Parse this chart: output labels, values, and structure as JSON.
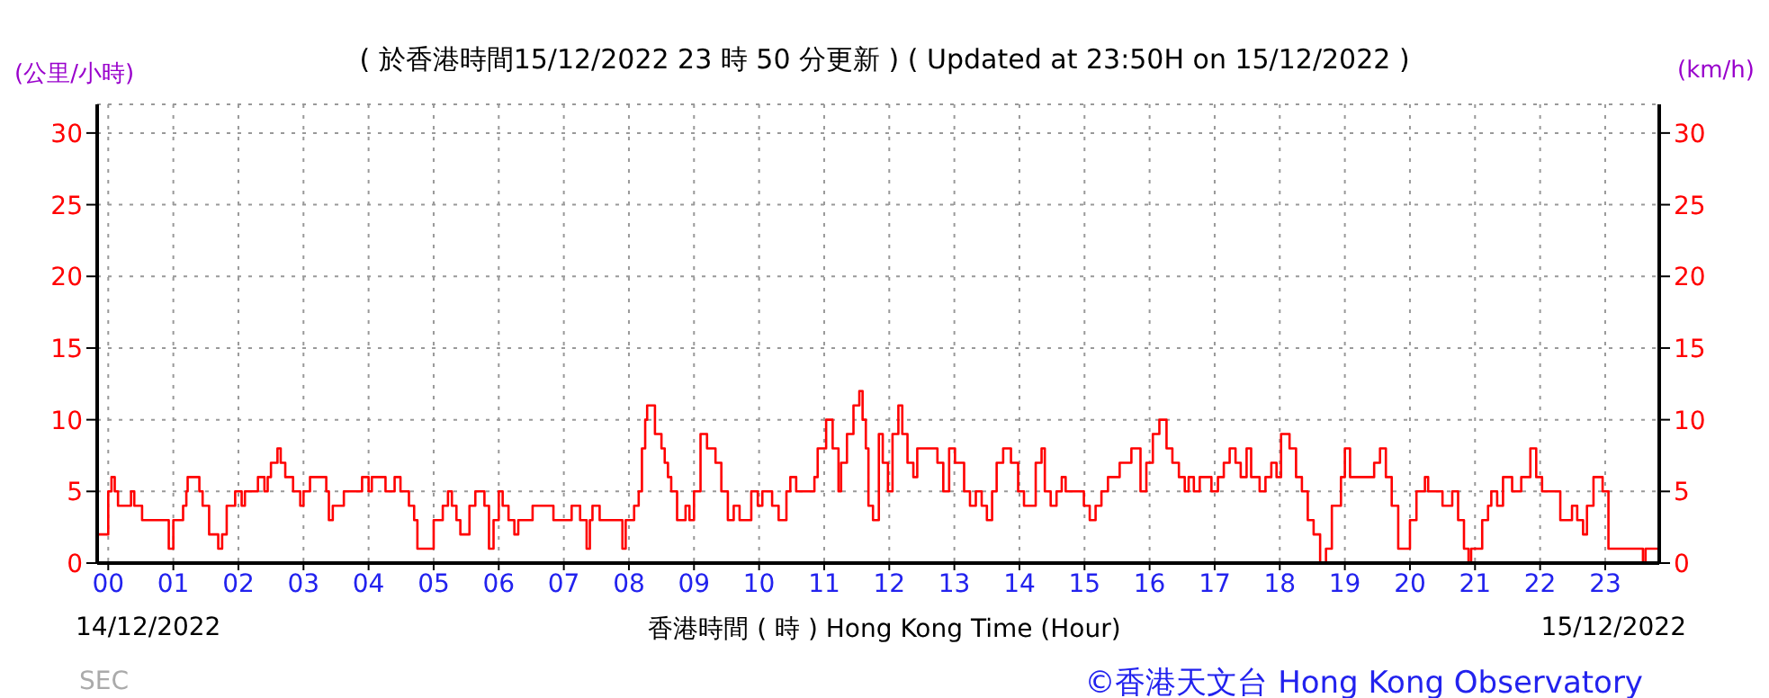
{
  "chart_data": {
    "type": "step",
    "title": "( 於香港時間15/12/2022 23 時 50 分更新 ) ( Updated at 23:50H on 15/12/2022 )",
    "xlabel": "香港時間 ( 時 ) Hong Kong Time (Hour)",
    "ylabel": "(公里/小時)",
    "y2label": "(km/h)",
    "annotations": [
      "14/12/2022",
      "15/12/2022",
      "SEC",
      "©香港天文台 Hong Kong Observatory"
    ],
    "xlim": [
      -0.17,
      23.83
    ],
    "xticks": [
      {
        "value": 0,
        "label": "00"
      },
      {
        "value": 1,
        "label": "01"
      },
      {
        "value": 2,
        "label": "02"
      },
      {
        "value": 3,
        "label": "03"
      },
      {
        "value": 4,
        "label": "04"
      },
      {
        "value": 5,
        "label": "05"
      },
      {
        "value": 6,
        "label": "06"
      },
      {
        "value": 7,
        "label": "07"
      },
      {
        "value": 8,
        "label": "08"
      },
      {
        "value": 9,
        "label": "09"
      },
      {
        "value": 10,
        "label": "10"
      },
      {
        "value": 11,
        "label": "11"
      },
      {
        "value": 12,
        "label": "12"
      },
      {
        "value": 13,
        "label": "13"
      },
      {
        "value": 14,
        "label": "14"
      },
      {
        "value": 15,
        "label": "15"
      },
      {
        "value": 16,
        "label": "16"
      },
      {
        "value": 17,
        "label": "17"
      },
      {
        "value": 18,
        "label": "18"
      },
      {
        "value": 19,
        "label": "19"
      },
      {
        "value": 20,
        "label": "20"
      },
      {
        "value": 21,
        "label": "21"
      },
      {
        "value": 22,
        "label": "22"
      },
      {
        "value": 23,
        "label": "23"
      }
    ],
    "ylim": [
      0,
      32
    ],
    "yticks": [
      0,
      5,
      10,
      15,
      20,
      25,
      30
    ],
    "y2lim": [
      0,
      32
    ],
    "y2ticks": [
      0,
      5,
      10,
      15,
      20,
      25,
      30
    ],
    "grid": true,
    "marker": "none",
    "line_style": "solid",
    "series": [
      {
        "color": "#ff0000",
        "x": [
          -0.17,
          0.0,
          0.05,
          0.1,
          0.15,
          0.35,
          0.4,
          0.52,
          0.93,
          1.0,
          1.15,
          1.2,
          1.22,
          1.4,
          1.45,
          1.55,
          1.69,
          1.75,
          1.82,
          1.95,
          2.05,
          2.1,
          2.3,
          2.4,
          2.45,
          2.5,
          2.6,
          2.65,
          2.72,
          2.84,
          2.95,
          3.0,
          3.1,
          3.35,
          3.39,
          3.45,
          3.62,
          3.9,
          4.0,
          4.05,
          4.26,
          4.4,
          4.49,
          4.62,
          4.7,
          4.75,
          5.0,
          5.14,
          5.22,
          5.28,
          5.35,
          5.41,
          5.55,
          5.64,
          5.78,
          5.85,
          5.92,
          6.0,
          6.06,
          6.15,
          6.24,
          6.3,
          6.52,
          6.84,
          7.12,
          7.25,
          7.35,
          7.4,
          7.44,
          7.55,
          7.76,
          7.9,
          7.95,
          8.08,
          8.15,
          8.2,
          8.25,
          8.28,
          8.4,
          8.5,
          8.55,
          8.6,
          8.65,
          8.74,
          8.87,
          8.93,
          9.0,
          9.1,
          9.2,
          9.33,
          9.42,
          9.52,
          9.61,
          9.7,
          9.88,
          9.98,
          10.05,
          10.2,
          10.3,
          10.42,
          10.48,
          10.57,
          10.85,
          10.9,
          11.03,
          11.13,
          11.22,
          11.26,
          11.35,
          11.45,
          11.54,
          11.59,
          11.64,
          11.68,
          11.75,
          11.84,
          11.9,
          11.98,
          12.05,
          12.14,
          12.2,
          12.28,
          12.37,
          12.43,
          12.74,
          12.83,
          12.92,
          13.01,
          13.15,
          13.24,
          13.33,
          13.42,
          13.5,
          13.58,
          13.65,
          13.75,
          13.87,
          13.98,
          14.07,
          14.25,
          14.34,
          14.39,
          14.48,
          14.57,
          14.65,
          14.71,
          14.99,
          15.08,
          15.17,
          15.26,
          15.36,
          15.54,
          15.72,
          15.86,
          15.95,
          16.05,
          16.15,
          16.26,
          16.35,
          16.45,
          16.54,
          16.6,
          16.68,
          16.77,
          16.95,
          17.05,
          17.14,
          17.23,
          17.32,
          17.4,
          17.49,
          17.56,
          17.69,
          17.78,
          17.87,
          17.95,
          18.02,
          18.15,
          18.25,
          18.34,
          18.43,
          18.52,
          18.62,
          18.71,
          18.8,
          18.94,
          19.0,
          19.08,
          19.45,
          19.54,
          19.63,
          19.72,
          19.82,
          20.0,
          20.1,
          20.23,
          20.28,
          20.5,
          20.65,
          20.74,
          20.83,
          20.9,
          20.94,
          21.11,
          21.2,
          21.25,
          21.34,
          21.43,
          21.57,
          21.71,
          21.85,
          21.94,
          22.03,
          22.31,
          22.49,
          22.57,
          22.66,
          22.72,
          22.82,
          22.96,
          23.05,
          23.58,
          23.62,
          23.83
        ],
        "values": [
          2,
          5,
          6,
          5,
          4,
          5,
          4,
          3,
          1,
          3,
          4,
          5,
          6,
          5,
          4,
          2,
          1,
          2,
          4,
          5,
          4,
          5,
          6,
          5,
          6,
          7,
          8,
          7,
          6,
          5,
          4,
          5,
          6,
          5,
          3,
          4,
          5,
          6,
          5,
          6,
          5,
          6,
          5,
          4,
          3,
          1,
          3,
          4,
          5,
          4,
          3,
          2,
          4,
          5,
          4,
          1,
          3,
          5,
          4,
          3,
          2,
          3,
          4,
          3,
          4,
          3,
          1,
          3,
          4,
          3,
          3,
          1,
          3,
          4,
          5,
          8,
          10,
          11,
          9,
          8,
          7,
          6,
          5,
          3,
          4,
          3,
          5,
          9,
          8,
          7,
          5,
          3,
          4,
          3,
          5,
          4,
          5,
          4,
          3,
          5,
          6,
          5,
          6,
          8,
          10,
          8,
          5,
          7,
          9,
          11,
          12,
          10,
          8,
          4,
          3,
          9,
          7,
          5,
          9,
          11,
          9,
          7,
          6,
          8,
          7,
          5,
          8,
          7,
          5,
          4,
          5,
          4,
          3,
          5,
          7,
          8,
          7,
          5,
          4,
          7,
          8,
          5,
          4,
          5,
          6,
          5,
          4,
          3,
          4,
          5,
          6,
          7,
          8,
          5,
          7,
          9,
          10,
          8,
          7,
          6,
          5,
          6,
          5,
          6,
          5,
          6,
          7,
          8,
          7,
          6,
          8,
          6,
          5,
          6,
          7,
          6,
          9,
          8,
          6,
          5,
          3,
          2,
          0,
          1,
          4,
          6,
          8,
          6,
          7,
          8,
          6,
          4,
          1,
          3,
          5,
          6,
          5,
          4,
          5,
          3,
          1,
          0,
          1,
          3,
          4,
          5,
          4,
          6,
          5,
          6,
          8,
          6,
          5,
          3,
          4,
          3,
          2,
          4,
          6,
          5,
          1,
          0,
          1,
          1
        ]
      }
    ]
  }
}
